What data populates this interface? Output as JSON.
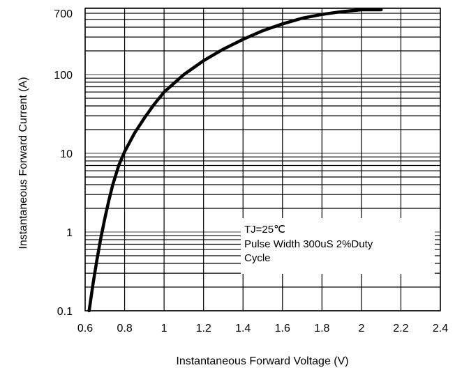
{
  "chart_data": {
    "type": "line",
    "title": "",
    "xlabel": "Instantaneous Forward Voltage (V)",
    "ylabel": "Instantaneous Forward Current (A)",
    "xlim": [
      0.6,
      2.4
    ],
    "ylim": [
      0.1,
      700
    ],
    "y_scale": "log",
    "grid": true,
    "legend": "none",
    "x_ticks": [
      {
        "value": 0.6,
        "label": "0.6"
      },
      {
        "value": 0.8,
        "label": "0.8"
      },
      {
        "value": 1.0,
        "label": "1"
      },
      {
        "value": 1.2,
        "label": "1.2"
      },
      {
        "value": 1.4,
        "label": "1.4"
      },
      {
        "value": 1.6,
        "label": "1.6"
      },
      {
        "value": 1.8,
        "label": "1.8"
      },
      {
        "value": 2.0,
        "label": "2"
      },
      {
        "value": 2.2,
        "label": "2.2"
      },
      {
        "value": 2.4,
        "label": "2.4"
      }
    ],
    "y_ticks": [
      {
        "value": 0.1,
        "label": "0.1"
      },
      {
        "value": 1,
        "label": "1"
      },
      {
        "value": 10,
        "label": "10"
      },
      {
        "value": 100,
        "label": "100"
      },
      {
        "value": 700,
        "label": "700"
      }
    ],
    "annotation": [
      "TJ=25℃",
      "Pulse Width 300uS 2%Duty",
      "Cycle"
    ],
    "series": [
      {
        "color": "#000000",
        "x": [
          0.62,
          0.64,
          0.66,
          0.68,
          0.7,
          0.72,
          0.74,
          0.77,
          0.8,
          0.85,
          0.9,
          0.95,
          1.0,
          1.1,
          1.2,
          1.3,
          1.4,
          1.5,
          1.6,
          1.7,
          1.8,
          1.9,
          2.0,
          2.1
        ],
        "y": [
          0.1,
          0.22,
          0.45,
          0.85,
          1.5,
          2.5,
          4.0,
          7.0,
          10.5,
          18,
          28,
          42,
          60,
          100,
          150,
          210,
          280,
          360,
          440,
          520,
          580,
          630,
          680,
          740
        ]
      }
    ]
  }
}
